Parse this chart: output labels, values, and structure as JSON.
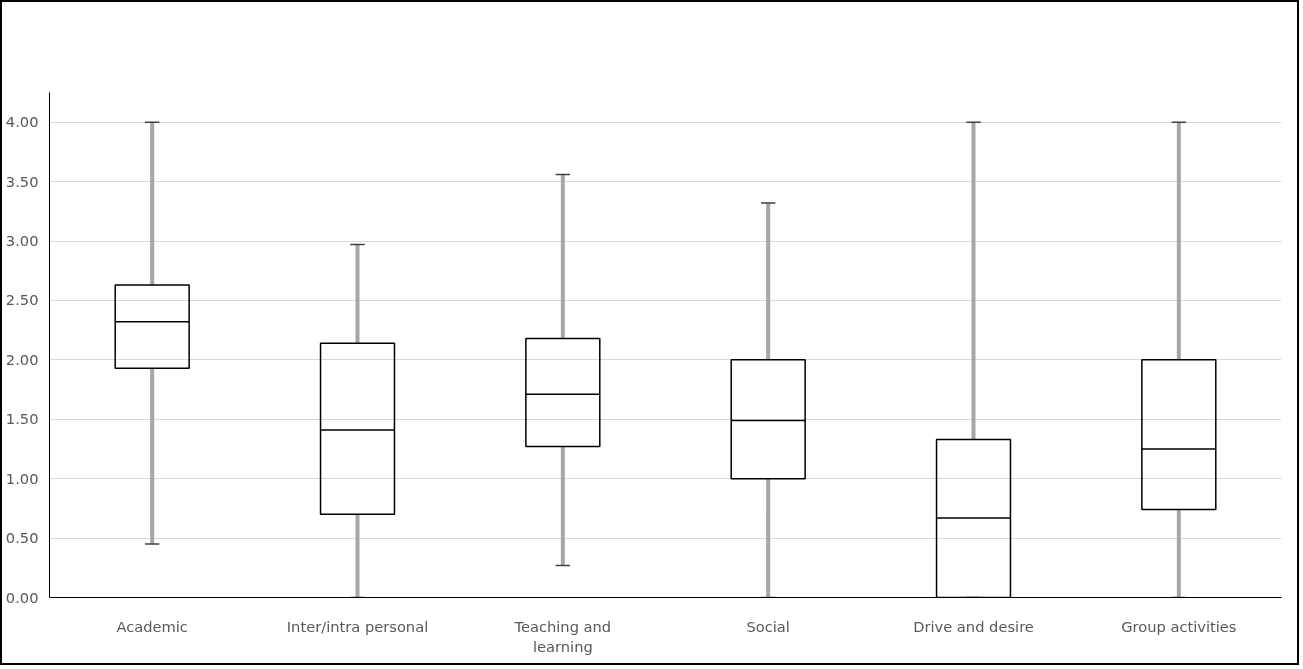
{
  "chart_data": {
    "type": "box",
    "categories": [
      "Academic",
      "Inter/intra personal",
      "Teaching and learning",
      "Social",
      "Drive and desire",
      "Group activities"
    ],
    "boxes": [
      {
        "low": 0.45,
        "q1": 1.93,
        "median": 2.32,
        "q3": 2.63,
        "high": 4.0
      },
      {
        "low": 0.0,
        "q1": 0.7,
        "median": 1.41,
        "q3": 2.14,
        "high": 2.97
      },
      {
        "low": 0.27,
        "q1": 1.27,
        "median": 1.71,
        "q3": 2.18,
        "high": 3.56
      },
      {
        "low": 0.0,
        "q1": 1.0,
        "median": 1.49,
        "q3": 2.0,
        "high": 3.32
      },
      {
        "low": 0.0,
        "q1": 0.0,
        "median": 0.67,
        "q3": 1.33,
        "high": 4.0
      },
      {
        "low": 0.0,
        "q1": 0.74,
        "median": 1.25,
        "q3": 2.0,
        "high": 4.0
      }
    ],
    "color": "#000000",
    "ylim": [
      0,
      4.25
    ],
    "yticks": [
      {
        "value": 0,
        "label": "0.00"
      },
      {
        "value": 0.5,
        "label": "0.50"
      },
      {
        "value": 1,
        "label": "1.00"
      },
      {
        "value": 1.5,
        "label": "1.50"
      },
      {
        "value": 2,
        "label": "2.00"
      },
      {
        "value": 2.5,
        "label": "2.50"
      },
      {
        "value": 3,
        "label": "3.00"
      },
      {
        "value": 3.5,
        "label": "3.50"
      },
      {
        "value": 4,
        "label": "4.00"
      }
    ],
    "grid": "y"
  }
}
